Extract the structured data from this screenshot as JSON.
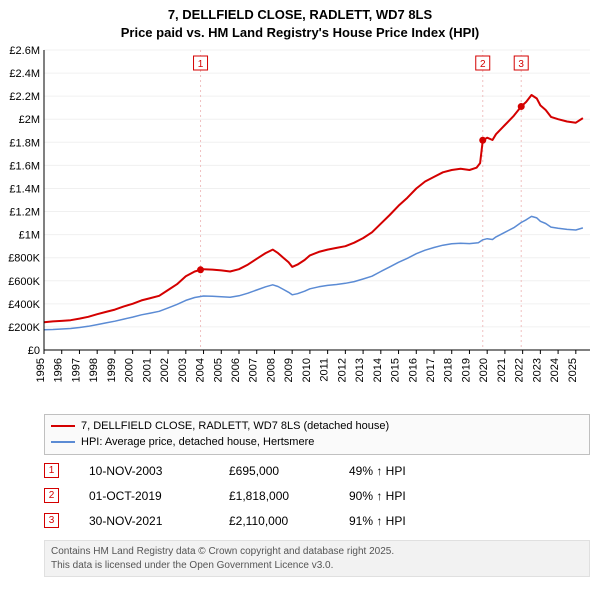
{
  "title_line1": "7, DELLFIELD CLOSE, RADLETT, WD7 8LS",
  "title_line2": "Price paid vs. HM Land Registry's House Price Index (HPI)",
  "chart": {
    "type": "line",
    "background_color": "#ffffff",
    "grid_color": "#f0f0f0",
    "axis_text_color": "#000000",
    "axis_fontsize": 11,
    "x": {
      "min": 1995,
      "max": 2025.8,
      "ticks": [
        1995,
        1996,
        1997,
        1998,
        1999,
        2000,
        2001,
        2002,
        2003,
        2004,
        2005,
        2006,
        2007,
        2008,
        2009,
        2010,
        2011,
        2012,
        2013,
        2014,
        2015,
        2016,
        2017,
        2018,
        2019,
        2020,
        2021,
        2022,
        2023,
        2024,
        2025
      ]
    },
    "y": {
      "min": 0,
      "max": 2600000,
      "tick_step": 200000,
      "tick_labels": [
        "£0",
        "£200K",
        "£400K",
        "£600K",
        "£800K",
        "£1M",
        "£1.2M",
        "£1.4M",
        "£1.6M",
        "£1.8M",
        "£2M",
        "£2.2M",
        "£2.4M",
        "£2.6M"
      ]
    },
    "series": [
      {
        "key": "subject",
        "label": "7, DELLFIELD CLOSE, RADLETT, WD7 8LS (detached house)",
        "color": "#d40000",
        "line_width": 2,
        "points": [
          [
            1995.0,
            240000
          ],
          [
            1995.5,
            248000
          ],
          [
            1996.0,
            252000
          ],
          [
            1996.5,
            258000
          ],
          [
            1997.0,
            272000
          ],
          [
            1997.5,
            288000
          ],
          [
            1998.0,
            310000
          ],
          [
            1998.5,
            330000
          ],
          [
            1999.0,
            350000
          ],
          [
            1999.5,
            378000
          ],
          [
            2000.0,
            400000
          ],
          [
            2000.5,
            430000
          ],
          [
            2001.0,
            450000
          ],
          [
            2001.5,
            470000
          ],
          [
            2002.0,
            520000
          ],
          [
            2002.5,
            570000
          ],
          [
            2003.0,
            640000
          ],
          [
            2003.5,
            680000
          ],
          [
            2003.83,
            695000
          ],
          [
            2004.0,
            700000
          ],
          [
            2004.5,
            697000
          ],
          [
            2005.0,
            690000
          ],
          [
            2005.5,
            680000
          ],
          [
            2006.0,
            700000
          ],
          [
            2006.5,
            740000
          ],
          [
            2007.0,
            790000
          ],
          [
            2007.5,
            840000
          ],
          [
            2007.9,
            870000
          ],
          [
            2008.2,
            840000
          ],
          [
            2008.5,
            800000
          ],
          [
            2008.8,
            760000
          ],
          [
            2009.0,
            720000
          ],
          [
            2009.3,
            740000
          ],
          [
            2009.7,
            780000
          ],
          [
            2010.0,
            820000
          ],
          [
            2010.5,
            850000
          ],
          [
            2011.0,
            870000
          ],
          [
            2011.5,
            885000
          ],
          [
            2012.0,
            900000
          ],
          [
            2012.5,
            930000
          ],
          [
            2013.0,
            970000
          ],
          [
            2013.5,
            1020000
          ],
          [
            2014.0,
            1095000
          ],
          [
            2014.5,
            1170000
          ],
          [
            2015.0,
            1250000
          ],
          [
            2015.5,
            1320000
          ],
          [
            2016.0,
            1400000
          ],
          [
            2016.5,
            1460000
          ],
          [
            2017.0,
            1500000
          ],
          [
            2017.5,
            1540000
          ],
          [
            2018.0,
            1560000
          ],
          [
            2018.5,
            1570000
          ],
          [
            2019.0,
            1560000
          ],
          [
            2019.4,
            1580000
          ],
          [
            2019.6,
            1620000
          ],
          [
            2019.75,
            1818000
          ],
          [
            2019.9,
            1830000
          ],
          [
            2020.0,
            1840000
          ],
          [
            2020.3,
            1820000
          ],
          [
            2020.5,
            1870000
          ],
          [
            2021.0,
            1950000
          ],
          [
            2021.5,
            2030000
          ],
          [
            2021.92,
            2110000
          ],
          [
            2022.2,
            2150000
          ],
          [
            2022.5,
            2210000
          ],
          [
            2022.8,
            2180000
          ],
          [
            2023.0,
            2120000
          ],
          [
            2023.3,
            2080000
          ],
          [
            2023.6,
            2020000
          ],
          [
            2024.0,
            2000000
          ],
          [
            2024.5,
            1980000
          ],
          [
            2025.0,
            1970000
          ],
          [
            2025.4,
            2010000
          ]
        ]
      },
      {
        "key": "hpi",
        "label": "HPI: Average price, detached house, Hertsmere",
        "color": "#5b8bd4",
        "line_width": 1.5,
        "points": [
          [
            1995.0,
            175000
          ],
          [
            1995.5,
            178000
          ],
          [
            1996.0,
            182000
          ],
          [
            1996.5,
            186000
          ],
          [
            1997.0,
            195000
          ],
          [
            1997.5,
            205000
          ],
          [
            1998.0,
            220000
          ],
          [
            1998.5,
            235000
          ],
          [
            1999.0,
            250000
          ],
          [
            1999.5,
            268000
          ],
          [
            2000.0,
            285000
          ],
          [
            2000.5,
            305000
          ],
          [
            2001.0,
            320000
          ],
          [
            2001.5,
            335000
          ],
          [
            2002.0,
            365000
          ],
          [
            2002.5,
            395000
          ],
          [
            2003.0,
            430000
          ],
          [
            2003.5,
            455000
          ],
          [
            2004.0,
            468000
          ],
          [
            2004.5,
            466000
          ],
          [
            2005.0,
            462000
          ],
          [
            2005.5,
            458000
          ],
          [
            2006.0,
            470000
          ],
          [
            2006.5,
            492000
          ],
          [
            2007.0,
            520000
          ],
          [
            2007.5,
            548000
          ],
          [
            2007.9,
            565000
          ],
          [
            2008.2,
            550000
          ],
          [
            2008.5,
            525000
          ],
          [
            2008.8,
            500000
          ],
          [
            2009.0,
            478000
          ],
          [
            2009.3,
            488000
          ],
          [
            2009.7,
            510000
          ],
          [
            2010.0,
            530000
          ],
          [
            2010.5,
            548000
          ],
          [
            2011.0,
            560000
          ],
          [
            2011.5,
            568000
          ],
          [
            2012.0,
            578000
          ],
          [
            2012.5,
            593000
          ],
          [
            2013.0,
            615000
          ],
          [
            2013.5,
            640000
          ],
          [
            2014.0,
            680000
          ],
          [
            2014.5,
            720000
          ],
          [
            2015.0,
            760000
          ],
          [
            2015.5,
            795000
          ],
          [
            2016.0,
            835000
          ],
          [
            2016.5,
            865000
          ],
          [
            2017.0,
            888000
          ],
          [
            2017.5,
            908000
          ],
          [
            2018.0,
            920000
          ],
          [
            2018.5,
            925000
          ],
          [
            2019.0,
            922000
          ],
          [
            2019.5,
            930000
          ],
          [
            2019.75,
            955000
          ],
          [
            2020.0,
            965000
          ],
          [
            2020.3,
            958000
          ],
          [
            2020.5,
            980000
          ],
          [
            2021.0,
            1020000
          ],
          [
            2021.5,
            1060000
          ],
          [
            2021.92,
            1105000
          ],
          [
            2022.2,
            1128000
          ],
          [
            2022.5,
            1158000
          ],
          [
            2022.8,
            1145000
          ],
          [
            2023.0,
            1115000
          ],
          [
            2023.3,
            1096000
          ],
          [
            2023.6,
            1065000
          ],
          [
            2024.0,
            1055000
          ],
          [
            2024.5,
            1045000
          ],
          [
            2025.0,
            1040000
          ],
          [
            2025.4,
            1058000
          ]
        ]
      }
    ],
    "sale_markers": [
      {
        "n": "1",
        "x": 2003.83,
        "y": 695000
      },
      {
        "n": "2",
        "x": 2019.75,
        "y": 1818000
      },
      {
        "n": "3",
        "x": 2021.92,
        "y": 2110000
      }
    ],
    "marker_border_color": "#d40000",
    "marker_dot_color": "#d40000",
    "marker_line_color": "#f0c0c0"
  },
  "legend": {
    "items": [
      {
        "color": "#d40000",
        "label": "7, DELLFIELD CLOSE, RADLETT, WD7 8LS (detached house)"
      },
      {
        "color": "#5b8bd4",
        "label": "HPI: Average price, detached house, Hertsmere"
      }
    ]
  },
  "sales": [
    {
      "n": "1",
      "date": "10-NOV-2003",
      "price": "£695,000",
      "vs": "49% ↑ HPI"
    },
    {
      "n": "2",
      "date": "01-OCT-2019",
      "price": "£1,818,000",
      "vs": "90% ↑ HPI"
    },
    {
      "n": "3",
      "date": "30-NOV-2021",
      "price": "£2,110,000",
      "vs": "91% ↑ HPI"
    }
  ],
  "credits": {
    "line1": "Contains HM Land Registry data © Crown copyright and database right 2025.",
    "line2": "This data is licensed under the Open Government Licence v3.0."
  }
}
